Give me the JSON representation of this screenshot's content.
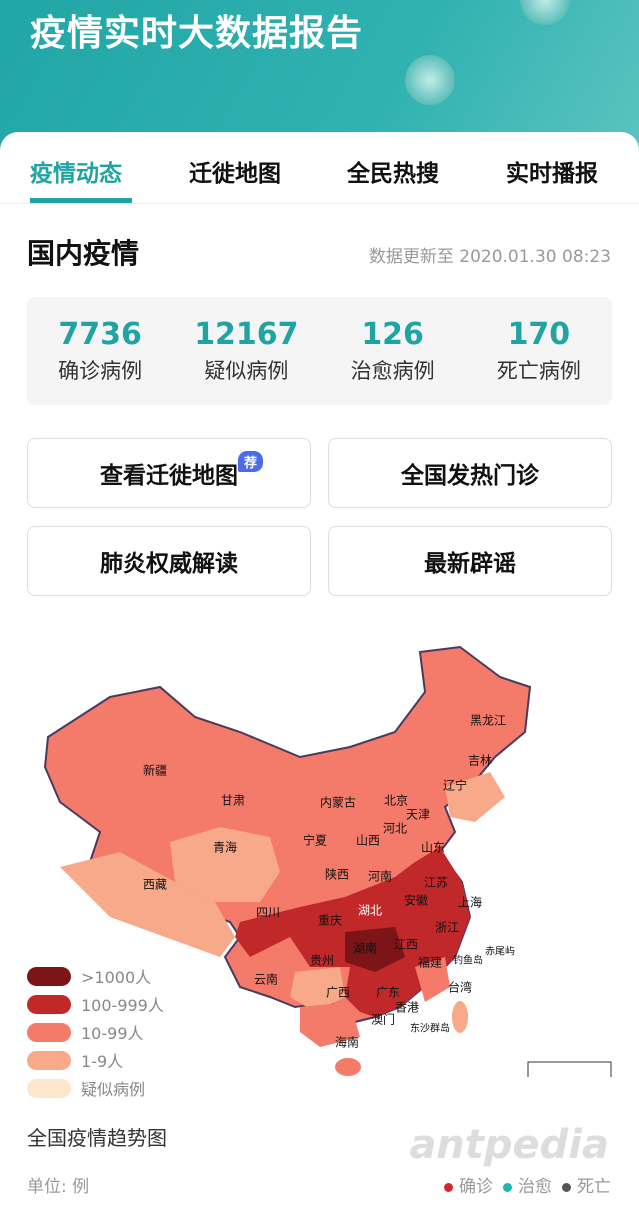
{
  "header": {
    "title": "疫情实时大数据报告"
  },
  "tabs": [
    {
      "label": "疫情动态",
      "active": true
    },
    {
      "label": "迁徙地图"
    },
    {
      "label": "全民热搜"
    },
    {
      "label": "实时播报"
    }
  ],
  "section": {
    "title": "国内疫情",
    "updated": "数据更新至 2020.01.30 08:23"
  },
  "stats": [
    {
      "value": "7736",
      "label": "确诊病例"
    },
    {
      "value": "12167",
      "label": "疑似病例"
    },
    {
      "value": "126",
      "label": "治愈病例"
    },
    {
      "value": "170",
      "label": "死亡病例"
    }
  ],
  "buttons": [
    {
      "label": "查看迁徙地图",
      "badge": "荐"
    },
    {
      "label": "全国发热门诊"
    },
    {
      "label": "肺炎权威解读"
    },
    {
      "label": "最新辟谣"
    }
  ],
  "colors": {
    "accent": "#1fa3a3",
    "over1000": "#7b1518",
    "c100_999": "#c0282a",
    "c10_99": "#f47a6a",
    "c1_9": "#f8a98a",
    "suspected": "#fde6cc"
  },
  "map": {
    "provinces": [
      {
        "name": "黑龙江",
        "level": "10-99"
      },
      {
        "name": "吉林",
        "level": "1-9"
      },
      {
        "name": "辽宁",
        "level": "10-99"
      },
      {
        "name": "新疆",
        "level": "10-99"
      },
      {
        "name": "甘肃",
        "level": "10-99"
      },
      {
        "name": "内蒙古",
        "level": "10-99"
      },
      {
        "name": "北京",
        "level": "100-999"
      },
      {
        "name": "天津",
        "level": "10-99"
      },
      {
        "name": "河北",
        "level": "10-99"
      },
      {
        "name": "山西",
        "level": "10-99"
      },
      {
        "name": "宁夏",
        "level": "10-99"
      },
      {
        "name": "青海",
        "level": "1-9"
      },
      {
        "name": "山东",
        "level": "100-999"
      },
      {
        "name": "西藏",
        "level": "1-9"
      },
      {
        "name": "陕西",
        "level": "10-99"
      },
      {
        "name": "河南",
        "level": "100-999"
      },
      {
        "name": "江苏",
        "level": "100-999"
      },
      {
        "name": "上海",
        "level": "10-99"
      },
      {
        "name": "安徽",
        "level": "100-999"
      },
      {
        "name": "湖北",
        "level": ">1000"
      },
      {
        "name": "四川",
        "level": "100-999"
      },
      {
        "name": "重庆",
        "level": "100-999"
      },
      {
        "name": "浙江",
        "level": "100-999"
      },
      {
        "name": "湖南",
        "level": "100-999"
      },
      {
        "name": "江西",
        "level": "100-999"
      },
      {
        "name": "贵州",
        "level": "1-9"
      },
      {
        "name": "云南",
        "level": "10-99"
      },
      {
        "name": "福建",
        "level": "10-99"
      },
      {
        "name": "台湾",
        "level": "1-9"
      },
      {
        "name": "广西",
        "level": "10-99"
      },
      {
        "name": "广东",
        "level": "100-999"
      },
      {
        "name": "香港",
        "level": "10-99"
      },
      {
        "name": "澳门",
        "level": "1-9"
      },
      {
        "name": "海南",
        "level": "10-99"
      },
      {
        "name": "钓鱼岛",
        "level": ""
      },
      {
        "name": "赤尾屿",
        "level": ""
      },
      {
        "name": "东沙群岛",
        "level": ""
      }
    ]
  },
  "legend": [
    {
      "label": ">1000人",
      "color": "#7b1518"
    },
    {
      "label": "100-999人",
      "color": "#c0282a"
    },
    {
      "label": "10-99人",
      "color": "#f47a6a"
    },
    {
      "label": "1-9人",
      "color": "#f8a98a"
    },
    {
      "label": "疑似病例",
      "color": "#fde6cc"
    }
  ],
  "trend": {
    "title": "全国疫情趋势图",
    "unit": "单位: 例",
    "series": [
      {
        "name": "确诊",
        "color": "#d62728"
      },
      {
        "name": "治愈",
        "color": "#1fb5b5"
      },
      {
        "name": "死亡",
        "color": "#555555"
      }
    ]
  },
  "watermark": "antpedia"
}
